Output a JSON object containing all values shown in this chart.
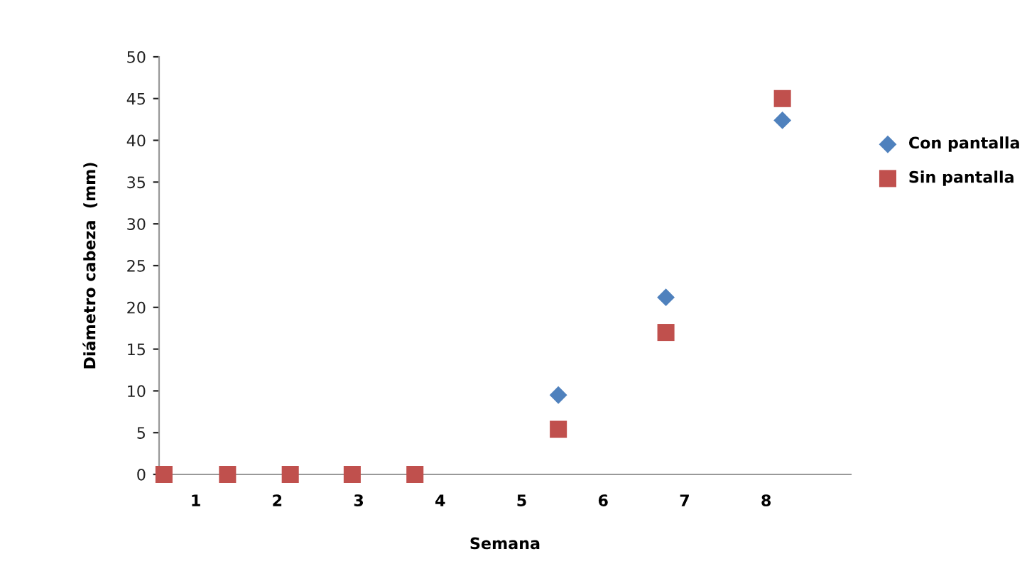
{
  "chart_data": {
    "type": "scatter",
    "xlabel": "Semana",
    "ylabel": "Diámetro cabeza  (mm)",
    "xlim": [
      0.55,
      9.04
    ],
    "xticks": [
      1,
      2,
      3,
      4,
      5,
      6,
      7,
      8
    ],
    "ylim": [
      0,
      50
    ],
    "yticks": [
      0,
      5,
      10,
      15,
      20,
      25,
      30,
      35,
      40,
      45,
      50
    ],
    "grid": false,
    "legend": "right",
    "series": [
      {
        "name": "Con pantalla",
        "color": "#4f81bd",
        "marker": "diamond",
        "x": [
          5.45,
          6.77,
          8.2
        ],
        "values": [
          9.5,
          21.2,
          42.4
        ]
      },
      {
        "name": "Sin pantalla",
        "color": "#c0504d",
        "marker": "square",
        "x": [
          0.61,
          1.39,
          2.16,
          2.92,
          3.69,
          5.45,
          6.77,
          8.2
        ],
        "values": [
          0,
          0,
          0,
          0,
          0,
          5.4,
          17.0,
          45.0
        ]
      }
    ]
  }
}
